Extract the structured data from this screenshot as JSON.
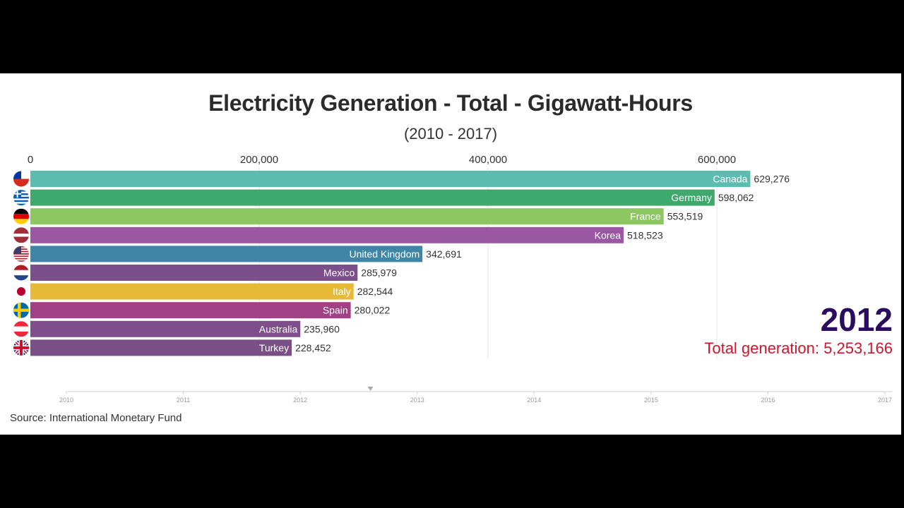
{
  "chart_data": {
    "type": "bar",
    "orientation": "horizontal",
    "title": "Electricity Generation - Total - Gigawatt-Hours",
    "subtitle": "(2010 - 2017)",
    "xlim": [
      0,
      600000
    ],
    "x_ticks": [
      0,
      200000,
      400000,
      600000
    ],
    "x_tick_labels": [
      "0",
      "200,000",
      "400,000",
      "600,000"
    ],
    "grid": true,
    "categories": [
      "Canada",
      "Germany",
      "France",
      "Korea",
      "United Kingdom",
      "Mexico",
      "Italy",
      "Spain",
      "Australia",
      "Turkey"
    ],
    "values": [
      629276,
      598062,
      553519,
      518523,
      342691,
      285979,
      282544,
      280022,
      235960,
      228452
    ],
    "value_labels": [
      "629,276",
      "598,062",
      "553,519",
      "518,523",
      "342,691",
      "285,979",
      "282,544",
      "280,022",
      "235,960",
      "228,452"
    ],
    "bar_colors": [
      "#5dbcb0",
      "#3fa86c",
      "#8cc761",
      "#9b57a1",
      "#3f85a5",
      "#7b4f8a",
      "#e6ba36",
      "#a24085",
      "#7e4f8a",
      "#7a4f86"
    ],
    "flags": [
      {
        "icon": "chile-flag-icon"
      },
      {
        "icon": "greece-flag-icon"
      },
      {
        "icon": "germany-flag-icon"
      },
      {
        "icon": "latvia-flag-icon"
      },
      {
        "icon": "usa-flag-icon"
      },
      {
        "icon": "netherlands-flag-icon"
      },
      {
        "icon": "japan-flag-icon"
      },
      {
        "icon": "sweden-flag-icon"
      },
      {
        "icon": "austria-flag-icon"
      },
      {
        "icon": "uk-flag-icon"
      }
    ],
    "year": "2012",
    "total_label": "Total generation: 5,253,166",
    "timeline": {
      "ticks": [
        "2010",
        "2011",
        "2012",
        "2013",
        "2014",
        "2015",
        "2016",
        "2017"
      ],
      "current": 2012.6
    },
    "source": "Source: International Monetary Fund"
  }
}
